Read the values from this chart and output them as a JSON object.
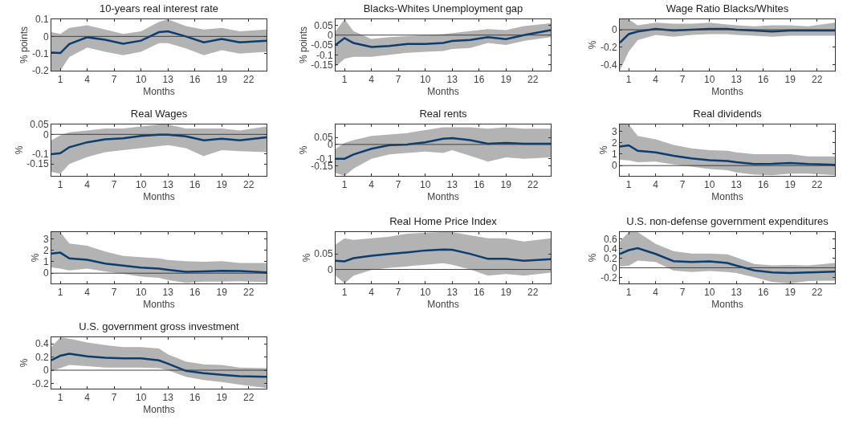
{
  "chart_data": [
    {
      "type": "line",
      "title": "10-years real interest rate",
      "xlabel": "Months",
      "ylabel": "% points",
      "x": [
        0,
        1,
        2,
        4,
        6,
        8,
        10,
        12,
        13,
        15,
        17,
        19,
        21,
        24
      ],
      "xlim": [
        0,
        24
      ],
      "xticks": [
        1,
        4,
        7,
        10,
        13,
        16,
        19,
        22
      ],
      "ylim": [
        -0.2,
        0.1
      ],
      "yticks": [
        -0.2,
        -0.1,
        0,
        0.1
      ],
      "ref_lines": [
        {
          "axis": "y",
          "value": 0,
          "color": "#404040"
        }
      ],
      "series": [
        {
          "color": "#0b3d6e",
          "values": [
            -0.095,
            -0.097,
            -0.045,
            -0.005,
            -0.02,
            -0.043,
            -0.025,
            0.025,
            0.03,
            0.0,
            -0.035,
            -0.015,
            -0.035,
            -0.025
          ],
          "lower": [
            -0.2,
            -0.2,
            -0.12,
            -0.065,
            -0.09,
            -0.11,
            -0.09,
            -0.04,
            -0.04,
            -0.07,
            -0.11,
            -0.08,
            -0.1,
            -0.09
          ],
          "upper": [
            0.025,
            0.015,
            0.05,
            0.065,
            0.04,
            0.015,
            0.03,
            0.085,
            0.1,
            0.06,
            0.04,
            0.05,
            0.03,
            0.04
          ]
        }
      ]
    },
    {
      "type": "line",
      "title": "Blacks-Whites Unemployment gap",
      "xlabel": "Months",
      "ylabel": "% points",
      "x": [
        0,
        1,
        2,
        4,
        6,
        8,
        10,
        12,
        13,
        15,
        17,
        19,
        21,
        24
      ],
      "xlim": [
        0,
        24
      ],
      "xticks": [
        1,
        4,
        7,
        10,
        13,
        16,
        19,
        22
      ],
      "ylim": [
        -0.18,
        0.08
      ],
      "yticks": [
        -0.15,
        -0.1,
        -0.05,
        0,
        0.05
      ],
      "ref_lines": [
        {
          "axis": "y",
          "value": 0,
          "color": "#404040"
        }
      ],
      "series": [
        {
          "color": "#0b3d6e",
          "values": [
            -0.05,
            -0.015,
            -0.04,
            -0.06,
            -0.055,
            -0.045,
            -0.045,
            -0.04,
            -0.03,
            -0.025,
            -0.01,
            -0.02,
            0.0,
            0.025
          ],
          "lower": [
            -0.16,
            -0.12,
            -0.11,
            -0.11,
            -0.1,
            -0.09,
            -0.085,
            -0.08,
            -0.07,
            -0.065,
            -0.04,
            -0.05,
            -0.03,
            -0.01
          ],
          "upper": [
            0.02,
            0.08,
            0.02,
            -0.02,
            -0.01,
            -0.005,
            0,
            0.005,
            0.01,
            0.02,
            0.03,
            0.025,
            0.045,
            0.06
          ]
        }
      ]
    },
    {
      "type": "line",
      "title": "Wage Ratio Blacks/Whites",
      "xlabel": "Months",
      "ylabel": "%",
      "x": [
        0,
        1,
        2,
        4,
        6,
        8,
        10,
        12,
        13,
        15,
        17,
        19,
        21,
        24
      ],
      "xlim": [
        0,
        24
      ],
      "xticks": [
        1,
        4,
        7,
        10,
        13,
        16,
        19,
        22
      ],
      "ylim": [
        -0.47,
        0.12
      ],
      "yticks": [
        -0.4,
        -0.2,
        0
      ],
      "ref_lines": [
        {
          "axis": "y",
          "value": 0,
          "color": "#404040"
        }
      ],
      "series": [
        {
          "color": "#0b3d6e",
          "values": [
            -0.15,
            -0.05,
            -0.02,
            0.01,
            -0.01,
            0,
            0.01,
            0.01,
            0,
            -0.01,
            -0.02,
            -0.01,
            -0.01,
            -0.01
          ],
          "lower": [
            -0.47,
            -0.25,
            -0.12,
            -0.06,
            -0.08,
            -0.06,
            -0.05,
            -0.05,
            -0.06,
            -0.07,
            -0.08,
            -0.07,
            -0.07,
            -0.07
          ],
          "upper": [
            0.12,
            0.12,
            0.05,
            0.08,
            0.07,
            0.07,
            0.08,
            0.06,
            0.05,
            0.04,
            0.05,
            0.05,
            0.04,
            0.08
          ]
        }
      ]
    },
    {
      "type": "line",
      "title": "Real Wages",
      "xlabel": "Months",
      "ylabel": "%",
      "x": [
        0,
        1,
        2,
        4,
        6,
        8,
        10,
        12,
        13,
        15,
        17,
        19,
        21,
        24
      ],
      "xlim": [
        0,
        24
      ],
      "xticks": [
        1,
        4,
        7,
        10,
        13,
        16,
        19,
        22
      ],
      "ylim": [
        -0.21,
        0.05
      ],
      "yticks": [
        -0.15,
        -0.1,
        0,
        0.05
      ],
      "ref_lines": [
        {
          "axis": "y",
          "value": 0,
          "color": "#404040"
        }
      ],
      "series": [
        {
          "color": "#0b3d6e",
          "values": [
            -0.1,
            -0.095,
            -0.065,
            -0.04,
            -0.025,
            -0.02,
            -0.008,
            -0.002,
            -0.002,
            -0.01,
            -0.03,
            -0.022,
            -0.03,
            -0.015
          ],
          "lower": [
            -0.19,
            -0.2,
            -0.15,
            -0.115,
            -0.09,
            -0.08,
            -0.07,
            -0.06,
            -0.055,
            -0.07,
            -0.11,
            -0.08,
            -0.085,
            -0.09
          ],
          "upper": [
            -0.03,
            -0.005,
            0.01,
            0.02,
            0.03,
            0.03,
            0.04,
            0.05,
            0.05,
            0.03,
            0.03,
            0.03,
            0.02,
            0.04
          ]
        }
      ]
    },
    {
      "type": "line",
      "title": "Real rents",
      "xlabel": "Months",
      "ylabel": "%",
      "x": [
        0,
        1,
        2,
        4,
        6,
        8,
        10,
        12,
        13,
        15,
        17,
        19,
        21,
        24
      ],
      "xlim": [
        0,
        24
      ],
      "xticks": [
        1,
        4,
        7,
        10,
        13,
        16,
        19,
        22
      ],
      "ylim": [
        -0.22,
        0.14
      ],
      "yticks": [
        -0.15,
        -0.1,
        0,
        0.05
      ],
      "ref_lines": [
        {
          "axis": "y",
          "value": 0,
          "color": "#404040"
        }
      ],
      "series": [
        {
          "color": "#0b3d6e",
          "values": [
            -0.1,
            -0.1,
            -0.07,
            -0.03,
            -0.005,
            0,
            0.015,
            0.04,
            0.045,
            0.03,
            0.005,
            0.01,
            0.005,
            0.005
          ],
          "lower": [
            -0.2,
            -0.22,
            -0.17,
            -0.1,
            -0.07,
            -0.06,
            -0.05,
            -0.06,
            -0.04,
            -0.08,
            -0.12,
            -0.09,
            -0.1,
            -0.09
          ],
          "upper": [
            -0.03,
            0.01,
            0.03,
            0.06,
            0.07,
            0.08,
            0.1,
            0.12,
            0.12,
            0.12,
            0.11,
            0.12,
            0.11,
            0.11
          ]
        }
      ]
    },
    {
      "type": "line",
      "title": "Real dividends",
      "xlabel": "Months",
      "ylabel": "%",
      "x": [
        0,
        1,
        2,
        4,
        6,
        8,
        10,
        12,
        13,
        15,
        17,
        19,
        21,
        24
      ],
      "xlim": [
        0,
        24
      ],
      "xticks": [
        1,
        4,
        7,
        10,
        13,
        16,
        19,
        22
      ],
      "ylim": [
        -0.9,
        3.6
      ],
      "yticks": [
        0,
        1,
        2,
        3
      ],
      "ref_lines": [
        {
          "axis": "y",
          "value": 0,
          "color": "#404040"
        }
      ],
      "series": [
        {
          "color": "#0b3d6e",
          "values": [
            1.67,
            1.77,
            1.3,
            1.16,
            0.86,
            0.63,
            0.47,
            0.4,
            0.3,
            0.14,
            0.16,
            0.23,
            0.14,
            0.07
          ],
          "lower": [
            0.5,
            0.45,
            0.3,
            0.35,
            0.1,
            -0.1,
            -0.3,
            -0.4,
            -0.6,
            -0.8,
            -0.85,
            -0.7,
            -0.7,
            -0.85
          ],
          "upper": [
            3.6,
            3.6,
            2.6,
            2.3,
            1.8,
            1.5,
            1.35,
            1.3,
            1.15,
            1.0,
            1.0,
            1.0,
            0.8,
            0.8
          ]
        }
      ]
    },
    {
      "type": "line",
      "xlabel": "Months",
      "ylabel": "%",
      "x": [
        0,
        1,
        2,
        4,
        6,
        8,
        10,
        12,
        13,
        15,
        17,
        19,
        21,
        24
      ],
      "xlim": [
        0,
        24
      ],
      "xticks": [
        1,
        4,
        7,
        10,
        13,
        16,
        19,
        22
      ],
      "ylim": [
        -0.9,
        3.6
      ],
      "yticks": [
        0,
        1,
        2,
        3
      ],
      "ref_lines": [
        {
          "axis": "y",
          "value": 0,
          "color": "#404040"
        }
      ],
      "series": [
        {
          "color": "#0b3d6e",
          "values": [
            1.71,
            1.8,
            1.29,
            1.17,
            0.84,
            0.66,
            0.49,
            0.4,
            0.3,
            0.12,
            0.16,
            0.21,
            0.19,
            0.07
          ],
          "lower": [
            0.5,
            0.4,
            0.25,
            0.4,
            0.15,
            -0.05,
            -0.3,
            -0.4,
            -0.6,
            -0.85,
            -0.75,
            -0.75,
            -0.7,
            -0.8
          ],
          "upper": [
            3.6,
            3.6,
            2.6,
            2.4,
            1.9,
            1.5,
            1.4,
            1.3,
            1.15,
            1.05,
            1.0,
            1.05,
            0.9,
            0.9
          ]
        }
      ]
    },
    {
      "type": "line",
      "title": "Real Home Price Index",
      "xlabel": "Months",
      "ylabel": "%",
      "x": [
        0,
        1,
        2,
        4,
        6,
        8,
        10,
        12,
        13,
        15,
        17,
        19,
        21,
        24
      ],
      "xlim": [
        0,
        24
      ],
      "xticks": [
        1,
        4,
        7,
        10,
        13,
        16,
        19,
        22
      ],
      "ylim": [
        -0.045,
        0.12
      ],
      "yticks": [
        0,
        0.05
      ],
      "ref_lines": [
        {
          "axis": "y",
          "value": 0,
          "color": "#404040"
        }
      ],
      "series": [
        {
          "color": "#0b3d6e",
          "values": [
            0.028,
            0.026,
            0.036,
            0.044,
            0.05,
            0.055,
            0.061,
            0.064,
            0.063,
            0.05,
            0.034,
            0.034,
            0.028,
            0.033
          ],
          "lower": [
            -0.02,
            -0.045,
            -0.02,
            -0.002,
            0.005,
            0.01,
            0.015,
            0.02,
            0.015,
            0.0,
            -0.02,
            -0.015,
            -0.02,
            -0.01
          ],
          "upper": [
            0.08,
            0.1,
            0.095,
            0.1,
            0.105,
            0.115,
            0.118,
            0.12,
            0.12,
            0.11,
            0.1,
            0.1,
            0.09,
            0.1
          ]
        }
      ]
    },
    {
      "type": "line",
      "title": "U.S. non-defense government expenditures",
      "xlabel": "Months",
      "ylabel": "%",
      "x": [
        0,
        1,
        2,
        4,
        6,
        8,
        10,
        12,
        13,
        15,
        17,
        19,
        21,
        24
      ],
      "xlim": [
        0,
        24
      ],
      "xticks": [
        1,
        4,
        7,
        10,
        13,
        16,
        19,
        22
      ],
      "ylim": [
        -0.33,
        0.75
      ],
      "yticks": [
        -0.2,
        0,
        0.2,
        0.4,
        0.6
      ],
      "ref_lines": [
        {
          "axis": "y",
          "value": 0,
          "color": "#404040"
        }
      ],
      "series": [
        {
          "color": "#0b3d6e",
          "values": [
            0.29,
            0.37,
            0.41,
            0.29,
            0.14,
            0.12,
            0.135,
            0.1,
            0.045,
            -0.056,
            -0.096,
            -0.11,
            -0.1,
            -0.08
          ],
          "lower": [
            0.03,
            0.04,
            0.15,
            0.12,
            -0.06,
            -0.09,
            -0.07,
            -0.09,
            -0.11,
            -0.2,
            -0.3,
            -0.33,
            -0.28,
            -0.27
          ],
          "upper": [
            0.55,
            0.75,
            0.75,
            0.5,
            0.35,
            0.3,
            0.3,
            0.28,
            0.22,
            0.08,
            0.05,
            0.06,
            0.05,
            0.1
          ]
        }
      ]
    },
    {
      "type": "line",
      "title": "U.S. government gross investment",
      "xlabel": "Months",
      "ylabel": "%",
      "x": [
        0,
        1,
        2,
        4,
        6,
        8,
        10,
        12,
        13,
        15,
        17,
        19,
        21,
        24
      ],
      "xlim": [
        0,
        24
      ],
      "xticks": [
        1,
        4,
        7,
        10,
        13,
        16,
        19,
        22
      ],
      "ylim": [
        -0.28,
        0.5
      ],
      "yticks": [
        -0.2,
        0,
        0.2,
        0.4
      ],
      "ref_lines": [
        {
          "axis": "y",
          "value": 0,
          "color": "#404040"
        }
      ],
      "series": [
        {
          "color": "#0b3d6e",
          "values": [
            0.15,
            0.22,
            0.25,
            0.21,
            0.19,
            0.18,
            0.18,
            0.15,
            0.1,
            -0.01,
            -0.045,
            -0.07,
            -0.09,
            -0.1
          ],
          "lower": [
            -0.01,
            0.03,
            0.08,
            0.06,
            0.04,
            0.04,
            0.04,
            0.03,
            0.0,
            -0.1,
            -0.15,
            -0.18,
            -0.22,
            -0.27
          ],
          "upper": [
            0.35,
            0.5,
            0.48,
            0.42,
            0.38,
            0.35,
            0.35,
            0.33,
            0.24,
            0.13,
            0.09,
            0.08,
            0.04,
            0.03
          ]
        }
      ]
    }
  ]
}
